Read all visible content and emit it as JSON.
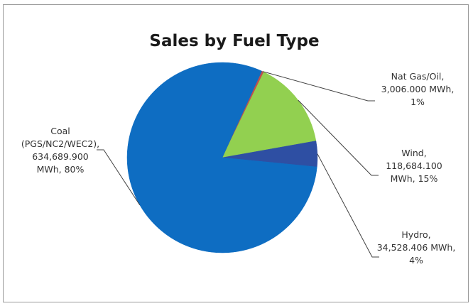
{
  "chart_data": {
    "type": "pie",
    "title": "Sales by Fuel Type",
    "slices": [
      {
        "name": "Nat Gas/Oil",
        "value": 3006.0,
        "percent": 1,
        "color": "#c0504d",
        "label_lines": [
          "Nat Gas/Oil,",
          "3,006.000 MWh,",
          "1%"
        ]
      },
      {
        "name": "Wind",
        "value": 118684.1,
        "percent": 15,
        "color": "#92d050",
        "label_lines": [
          "Wind,",
          "118,684.100",
          "MWh, 15%"
        ]
      },
      {
        "name": "Hydro",
        "value": 34528.406,
        "percent": 4,
        "color": "#2e4fa3",
        "label_lines": [
          "Hydro,",
          "34,528.406 MWh,",
          "4%"
        ]
      },
      {
        "name": "Coal (PGS/NC2/WEC2)",
        "value": 634689.9,
        "percent": 80,
        "color": "#0e6dc2",
        "label_lines": [
          "Coal",
          "(PGS/NC2/WEC2),",
          "634,689.900",
          "MWh, 80%"
        ]
      }
    ]
  }
}
